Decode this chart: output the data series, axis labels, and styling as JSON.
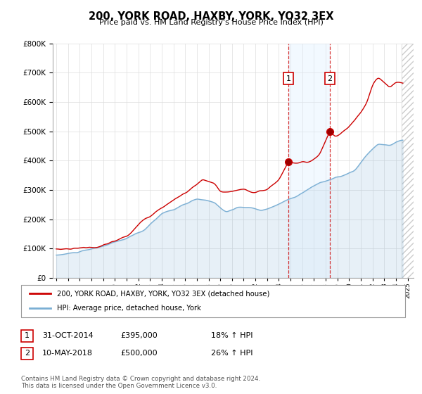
{
  "title": "200, YORK ROAD, HAXBY, YORK, YO32 3EX",
  "subtitle": "Price paid vs. HM Land Registry's House Price Index (HPI)",
  "ylim": [
    0,
    800000
  ],
  "yticks": [
    0,
    100000,
    200000,
    300000,
    400000,
    500000,
    600000,
    700000,
    800000
  ],
  "legend_line1": "200, YORK ROAD, HAXBY, YORK, YO32 3EX (detached house)",
  "legend_line2": "HPI: Average price, detached house, York",
  "purchase1_date": "31-OCT-2014",
  "purchase1_price": 395000,
  "purchase1_label": "18% ↑ HPI",
  "purchase1_year": 2014.83,
  "purchase2_date": "10-MAY-2018",
  "purchase2_price": 500000,
  "purchase2_label": "26% ↑ HPI",
  "purchase2_year": 2018.36,
  "footnote": "Contains HM Land Registry data © Crown copyright and database right 2024.\nThis data is licensed under the Open Government Licence v3.0.",
  "red_color": "#cc0000",
  "blue_color": "#7bafd4",
  "shade_color": "#dceeff",
  "hatch_start": 2024.5,
  "xlim_start": 1994.7,
  "xlim_end": 2025.5
}
